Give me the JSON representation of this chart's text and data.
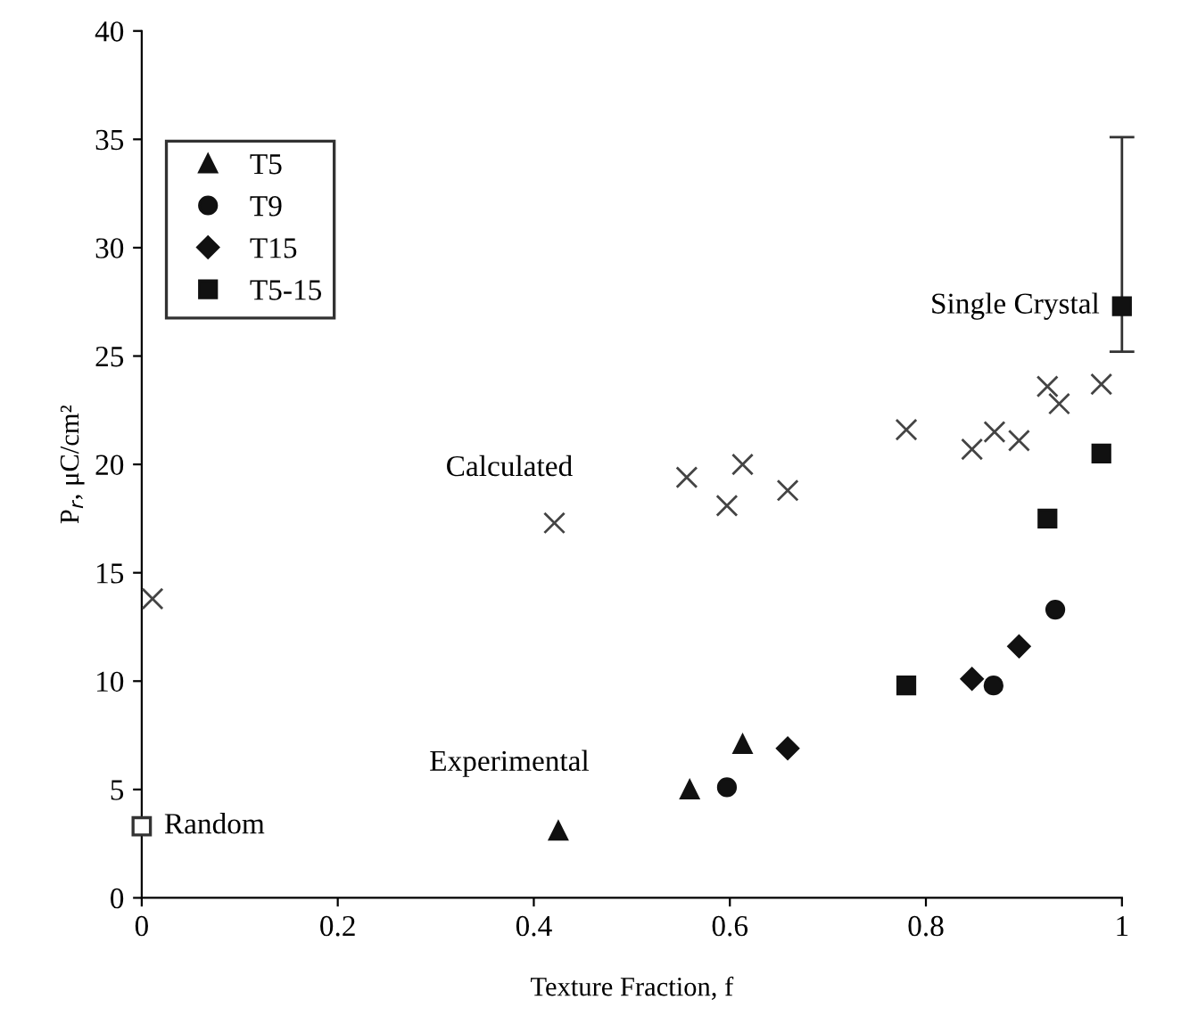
{
  "chart_data": {
    "type": "scatter",
    "xlabel": "Texture Fraction, f",
    "ylabel": "P$_{r}$, μC/cm²",
    "xlim": [
      0,
      1
    ],
    "xticks": [
      0,
      {
        "value": 0.2,
        "label": "0.2"
      },
      {
        "value": 0.4,
        "label": "0.4"
      },
      {
        "value": 0.6,
        "label": "0.6"
      },
      {
        "value": 0.8,
        "label": "0.8"
      },
      1
    ],
    "ylim": [
      0,
      40
    ],
    "yticks": [
      0,
      5,
      10,
      15,
      20,
      25,
      30,
      35,
      40
    ],
    "grid": false,
    "legend": "top left",
    "series": [
      {
        "name": "T5",
        "marker": "triangle",
        "color": "#111111",
        "x": [
          0.425,
          0.559,
          0.613
        ],
        "values": [
          3.1,
          5.0,
          7.1
        ]
      },
      {
        "name": "T9",
        "marker": "circle",
        "color": "#111111",
        "x": [
          0.597,
          0.869,
          0.932
        ],
        "values": [
          5.1,
          9.8,
          13.3
        ]
      },
      {
        "name": "T15",
        "marker": "diamond",
        "color": "#111111",
        "x": [
          0.659,
          0.847,
          0.895
        ],
        "values": [
          6.9,
          10.1,
          11.6
        ]
      },
      {
        "name": "T5-15",
        "marker": "square",
        "color": "#111111",
        "x": [
          0.78,
          0.924,
          0.979
        ],
        "values": [
          9.8,
          17.5,
          20.5
        ]
      },
      {
        "marker": "cross",
        "color": "#444444",
        "x": [
          0.011,
          0.421,
          0.556,
          0.613,
          0.597,
          0.659,
          0.78,
          0.847,
          0.87,
          0.895,
          0.924,
          0.936,
          0.979
        ],
        "values": [
          13.8,
          17.3,
          19.4,
          20.0,
          18.1,
          18.8,
          21.6,
          20.7,
          21.5,
          21.1,
          23.6,
          22.8,
          23.7
        ]
      },
      {
        "marker": "square",
        "color": "#111111",
        "x": [
          1.0
        ],
        "values": [
          27.3
        ],
        "errors": [
          [
            25.2,
            35.1
          ]
        ]
      },
      {
        "marker": "square",
        "color": "#ffffff",
        "x": [
          0.0
        ],
        "values": [
          3.3
        ]
      }
    ],
    "annotations": [
      "Calculated",
      "Experimental",
      {
        "text": "Random",
        "x": 0.0,
        "y": 3.3
      },
      {
        "text": "Single Crystal",
        "x": 1.0,
        "y": 27.3
      }
    ]
  }
}
